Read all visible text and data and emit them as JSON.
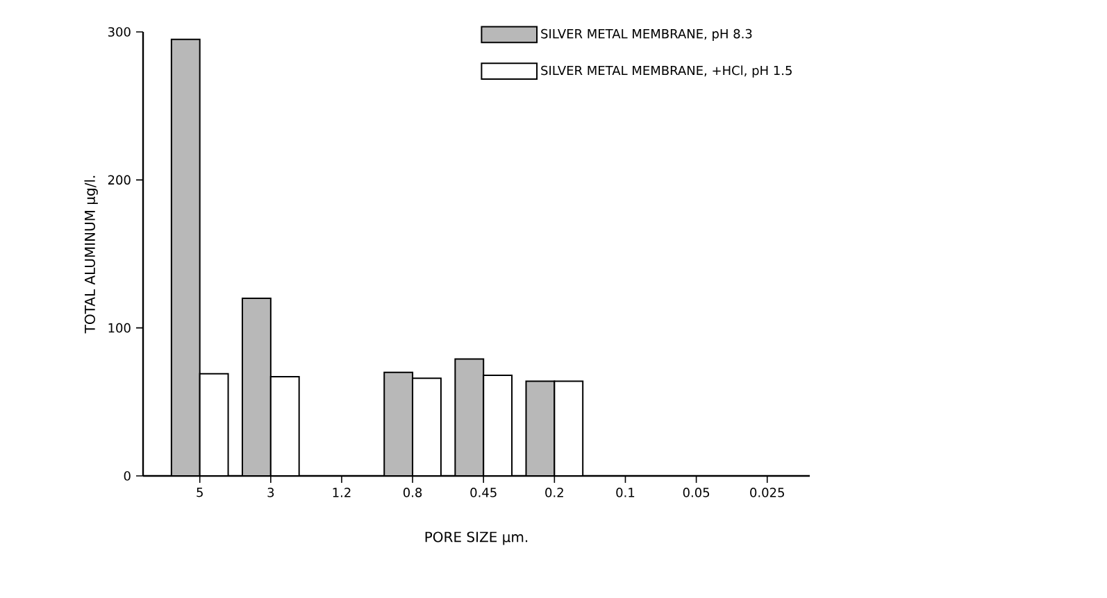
{
  "chart_data": {
    "type": "bar",
    "xlabel": "PORE SIZE µm.",
    "ylabel": "TOTAL ALUMINUM µg/l.",
    "categories": [
      "5",
      "3",
      "1.2",
      "0.8",
      "0.45",
      "0.2",
      "0.1",
      "0.05",
      "0.025"
    ],
    "series": [
      {
        "name": "SILVER METAL MEMBRANE, pH 8.3",
        "color": "#b8b8b8",
        "values": [
          295,
          120,
          null,
          70,
          79,
          64,
          null,
          null,
          null
        ]
      },
      {
        "name": "SILVER METAL MEMBRANE, +HCl, pH 1.5",
        "color": "#ffffff",
        "values": [
          69,
          67,
          null,
          66,
          68,
          64,
          null,
          null,
          null
        ]
      }
    ],
    "ylim": [
      0,
      300
    ],
    "yticks": [
      0,
      100,
      200,
      300
    ],
    "legend": "top right",
    "grid": false
  }
}
